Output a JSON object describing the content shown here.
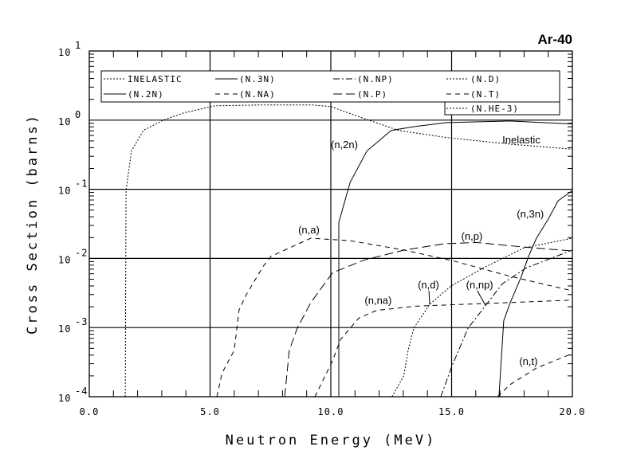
{
  "chart_data": {
    "type": "line",
    "title": "Ar-40",
    "xlabel": "Neutron Energy (MeV)",
    "ylabel": "Cross Section (barns)",
    "xlim": [
      0,
      20
    ],
    "ylim": [
      0.0001,
      10
    ],
    "yscale": "log",
    "grid": true,
    "x_ticks": [
      0,
      5,
      10,
      15,
      20
    ],
    "x_tick_labels": [
      "0.0",
      "5.0",
      "10.0",
      "15.0",
      "20.0"
    ],
    "y_tick_exponents": [
      1,
      0,
      -1,
      -2,
      -3,
      -4
    ],
    "y_tick_exponent_labels": [
      "1",
      "0",
      "-1",
      "-2",
      "-3",
      "-4"
    ],
    "y_tick_base": "10",
    "legend_placement": "top",
    "legend": [
      {
        "label": "INELASTIC",
        "style": "dotted"
      },
      {
        "label": "(N.3N)",
        "style": "solid"
      },
      {
        "label": "(N.NP)",
        "style": "dashdot"
      },
      {
        "label": "(N.D)",
        "style": "dotted"
      },
      {
        "label": "(N.2N)",
        "style": "solid"
      },
      {
        "label": "(N.NA)",
        "style": "dashed"
      },
      {
        "label": "(N.P)",
        "style": "longdash"
      },
      {
        "label": "(N.T)",
        "style": "dashed"
      },
      {
        "label": "(N.HE-3)",
        "style": "dotted"
      }
    ],
    "series": [
      {
        "name": "INELASTIC",
        "style": "dotted",
        "x": [
          1.49,
          1.52,
          1.75,
          2.24,
          3.07,
          3.9,
          5.2,
          7.2,
          9.2,
          10.0,
          11.2,
          12.8,
          14.8,
          17.4,
          20.0
        ],
        "y": [
          0.0001,
          0.097,
          0.36,
          0.71,
          1.0,
          1.27,
          1.61,
          1.66,
          1.66,
          1.57,
          1.11,
          0.71,
          0.56,
          0.45,
          0.38
        ]
      },
      {
        "name": "(N.2N)",
        "style": "solid",
        "x": [
          10.33,
          10.33,
          10.8,
          11.5,
          12.5,
          13.5,
          14.8,
          17.4,
          20.0
        ],
        "y": [
          0.0001,
          0.033,
          0.126,
          0.36,
          0.71,
          0.81,
          0.92,
          0.97,
          0.88
        ]
      },
      {
        "name": "(N.3N)",
        "style": "solid",
        "x": [
          16.96,
          17.16,
          17.43,
          17.86,
          18.18,
          18.51,
          18.98,
          19.41,
          20.0
        ],
        "y": [
          0.0001,
          0.00126,
          0.0023,
          0.0052,
          0.0106,
          0.0196,
          0.036,
          0.068,
          0.096
        ]
      },
      {
        "name": "(N.A)",
        "style": "dashed",
        "x": [
          5.28,
          5.5,
          6.0,
          6.2,
          6.5,
          7.2,
          7.52,
          9.17,
          10.82,
          13.04,
          15.02,
          17.43,
          20.0
        ],
        "y": [
          0.0001,
          0.00022,
          0.00047,
          0.0018,
          0.003,
          0.0077,
          0.0107,
          0.0196,
          0.018,
          0.0132,
          0.0093,
          0.0055,
          0.0034
        ]
      },
      {
        "name": "(N.P)",
        "style": "longdash",
        "x": [
          8.09,
          8.28,
          8.61,
          9.17,
          10.07,
          11.39,
          13.04,
          14.69,
          16.01,
          17.99,
          20.0
        ],
        "y": [
          0.0001,
          0.00047,
          0.00098,
          0.0023,
          0.0062,
          0.0095,
          0.0132,
          0.0163,
          0.017,
          0.0146,
          0.0128
        ]
      },
      {
        "name": "(N.NA)",
        "style": "dashed",
        "x": [
          9.34,
          10.07,
          10.4,
          11.16,
          11.91,
          13.56,
          15.21,
          17.43,
          20.0
        ],
        "y": [
          0.0001,
          0.00033,
          0.00067,
          0.00137,
          0.00178,
          0.00204,
          0.00215,
          0.0023,
          0.0025
        ]
      },
      {
        "name": "(N.D)",
        "style": "dotted",
        "x": [
          12.53,
          13.02,
          13.2,
          13.43,
          14.09,
          14.98,
          16.32,
          18.0,
          20.0
        ],
        "y": [
          0.0001,
          0.0002,
          0.00047,
          0.00098,
          0.00215,
          0.004,
          0.0073,
          0.0142,
          0.0196
        ]
      },
      {
        "name": "(N.NP)",
        "style": "dashdot",
        "x": [
          14.55,
          15.02,
          15.68,
          16.34,
          17.1,
          18.09,
          20.0
        ],
        "y": [
          0.0001,
          0.00028,
          0.00098,
          0.00194,
          0.0043,
          0.0073,
          0.0132
        ]
      },
      {
        "name": "(N.T)",
        "style": "dashed",
        "x": [
          16.9,
          17.43,
          18.51,
          20.0
        ],
        "y": [
          0.0001,
          0.00015,
          0.00026,
          0.00042
        ]
      }
    ],
    "annotations": [
      {
        "text": "Inelastic",
        "x": 17.1,
        "y": 0.46
      },
      {
        "text": "(n,2n)",
        "x": 10.0,
        "y": 0.395
      },
      {
        "text": "(n,3n)",
        "x": 17.7,
        "y": 0.039
      },
      {
        "text": "(n,a)",
        "x": 8.65,
        "y": 0.023
      },
      {
        "text": "(n,p)",
        "x": 15.4,
        "y": 0.0186
      },
      {
        "text": "(n,d)",
        "x": 13.6,
        "y": 0.0037,
        "pointer": [
          14.09,
          0.00215
        ]
      },
      {
        "text": "(n,np)",
        "x": 15.6,
        "y": 0.0037,
        "pointer": [
          16.4,
          0.0021
        ]
      },
      {
        "text": "(n,na)",
        "x": 11.4,
        "y": 0.0022
      },
      {
        "text": "(n,t)",
        "x": 17.8,
        "y": 0.00029
      }
    ]
  }
}
